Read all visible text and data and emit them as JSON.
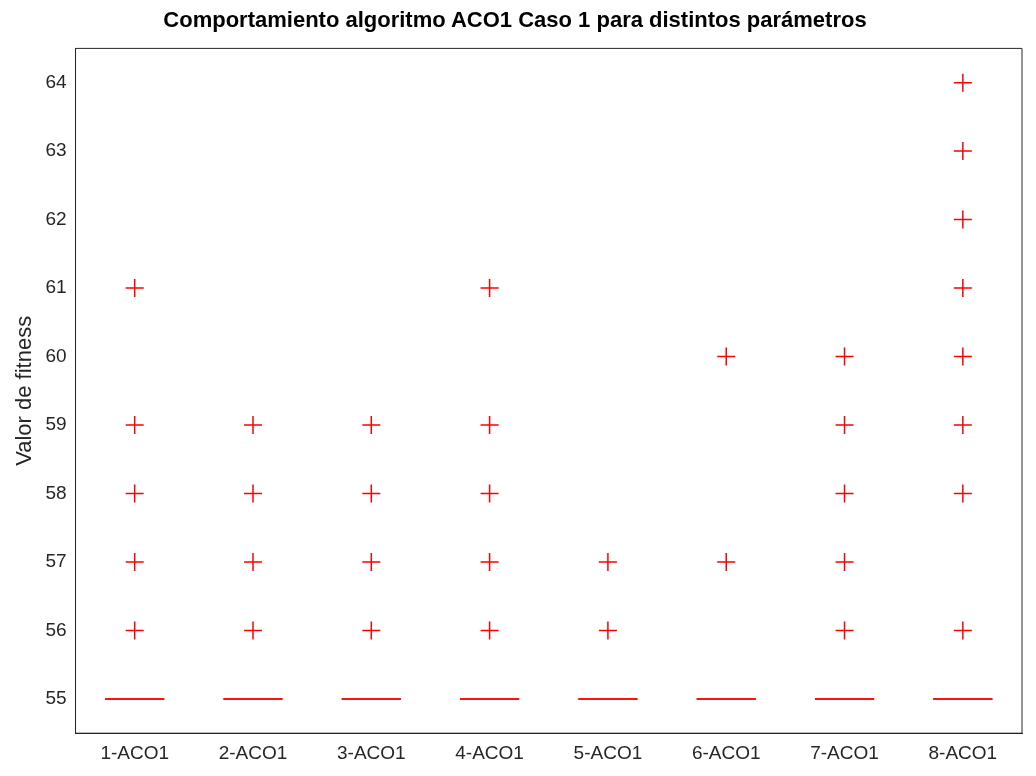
{
  "chart_data": {
    "type": "box",
    "title": "Comportamiento algoritmo ACO1 Caso 1 para distintos parámetros",
    "ylabel": "Valor de fitness",
    "categories": [
      "1-ACO1",
      "2-ACO1",
      "3-ACO1",
      "4-ACO1",
      "5-ACO1",
      "6-ACO1",
      "7-ACO1",
      "8-ACO1"
    ],
    "series": [
      {
        "color": "#ff0000",
        "boxes": [
          {
            "low": 55,
            "q1": 55,
            "median": 55,
            "q3": 55,
            "high": 55,
            "outliers": [
              56,
              57,
              58,
              59,
              61
            ]
          },
          {
            "low": 55,
            "q1": 55,
            "median": 55,
            "q3": 55,
            "high": 55,
            "outliers": [
              56,
              57,
              58,
              59
            ]
          },
          {
            "low": 55,
            "q1": 55,
            "median": 55,
            "q3": 55,
            "high": 55,
            "outliers": [
              56,
              57,
              58,
              59
            ]
          },
          {
            "low": 55,
            "q1": 55,
            "median": 55,
            "q3": 55,
            "high": 55,
            "outliers": [
              56,
              57,
              58,
              59,
              61
            ]
          },
          {
            "low": 55,
            "q1": 55,
            "median": 55,
            "q3": 55,
            "high": 55,
            "outliers": [
              56,
              57
            ]
          },
          {
            "low": 55,
            "q1": 55,
            "median": 55,
            "q3": 55,
            "high": 55,
            "outliers": [
              57,
              60
            ]
          },
          {
            "low": 55,
            "q1": 55,
            "median": 55,
            "q3": 55,
            "high": 55,
            "outliers": [
              56,
              57,
              58,
              59,
              60
            ]
          },
          {
            "low": 55,
            "q1": 55,
            "median": 55,
            "q3": 55,
            "high": 55,
            "outliers": [
              56,
              58,
              59,
              60,
              61,
              62,
              63,
              64
            ]
          }
        ]
      }
    ],
    "ylim": [
      54.5,
      64.5
    ],
    "yticks": [
      55,
      56,
      57,
      58,
      59,
      60,
      61,
      62,
      63,
      64
    ],
    "marker": "cross",
    "grid": false,
    "legend": false
  }
}
